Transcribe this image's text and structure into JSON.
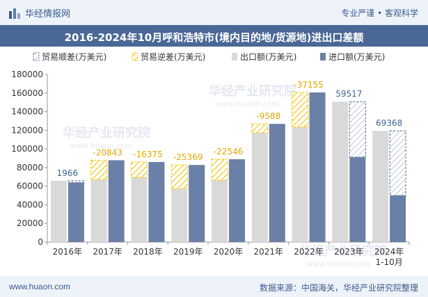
{
  "header": {
    "brand": "华经情报网",
    "slogan": "专业严谨 • 客观科学"
  },
  "footer": {
    "url": "www.huaon.com",
    "source": "数据来源：中国海关，华经产业研究院整理"
  },
  "watermark": "华经产业研究院",
  "watermark_url": "www.huaon.com",
  "colors": {
    "export": "#d9d9d9",
    "import": "#6b80a6",
    "deficit": "#f5c400",
    "surplus_border": "#4a6896",
    "surplus_label": "#3f6390",
    "deficit_label": "#e0a800",
    "header_bg": "#eef3fa",
    "title_bg": "#4a6896"
  },
  "chart_data": {
    "type": "bar",
    "title": "2016-2024年10月呼和浩特市(境内目的地/货源地)进出口差额",
    "categories": [
      "2016年",
      "2017年",
      "2018年",
      "2019年",
      "2020年",
      "2021年",
      "2022年",
      "2023年",
      "2024年\n1-10月"
    ],
    "series": [
      {
        "name": "出口额(万美元)",
        "values": [
          65800,
          67000,
          69600,
          57400,
          66400,
          117300,
          123500,
          150700,
          119400
        ]
      },
      {
        "name": "进口额(万美元)",
        "values": [
          63834,
          87843,
          85975,
          82769,
          88946,
          126888,
          160655,
          91183,
          50032
        ]
      }
    ],
    "balance": [
      1966,
      -20843,
      -16375,
      -25369,
      -22546,
      -9588,
      -37155,
      59517,
      69368
    ],
    "legend": [
      "贸易顺差(万美元)",
      "贸易逆差(万美元)",
      "出口额(万美元)",
      "进口额(万美元)"
    ],
    "legend_position": "top",
    "ylim": [
      0,
      180000
    ],
    "yticks": [
      0,
      20000,
      40000,
      60000,
      80000,
      100000,
      120000,
      140000,
      160000,
      180000
    ],
    "grid": false
  }
}
